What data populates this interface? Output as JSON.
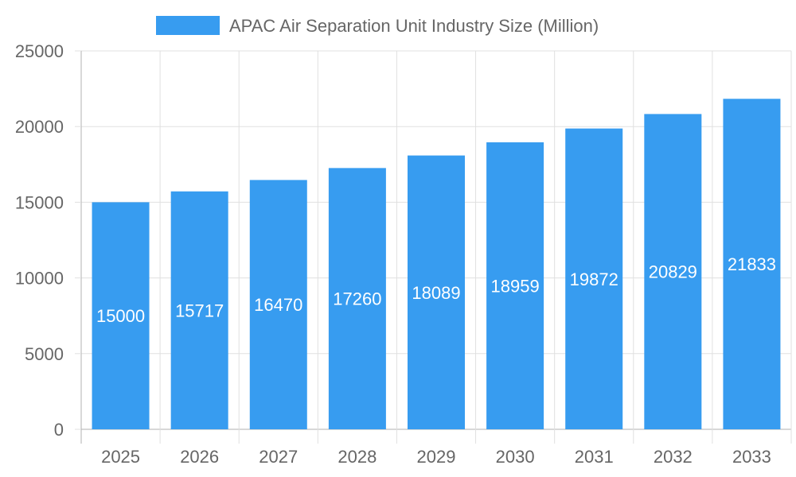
{
  "chart_data": {
    "type": "bar",
    "legend": {
      "label": "APAC Air Separation Unit Industry Size (Million)",
      "placement": "top"
    },
    "categories": [
      "2025",
      "2026",
      "2027",
      "2028",
      "2029",
      "2030",
      "2031",
      "2032",
      "2033"
    ],
    "series": [
      {
        "name": "APAC Air Separation Unit Industry Size (Million)",
        "values": [
          15000,
          15717,
          16470,
          17260,
          18089,
          18959,
          19872,
          20829,
          21833
        ]
      }
    ],
    "ylim": [
      0,
      25000
    ],
    "yticks": [
      0,
      5000,
      10000,
      15000,
      20000,
      25000
    ],
    "grid": true,
    "data_labels": true,
    "colors": {
      "bar": "#379cf0",
      "grid": "#e0e0e0",
      "axis": "#b0b0b0",
      "text": "#666666",
      "label": "#ffffff"
    }
  }
}
